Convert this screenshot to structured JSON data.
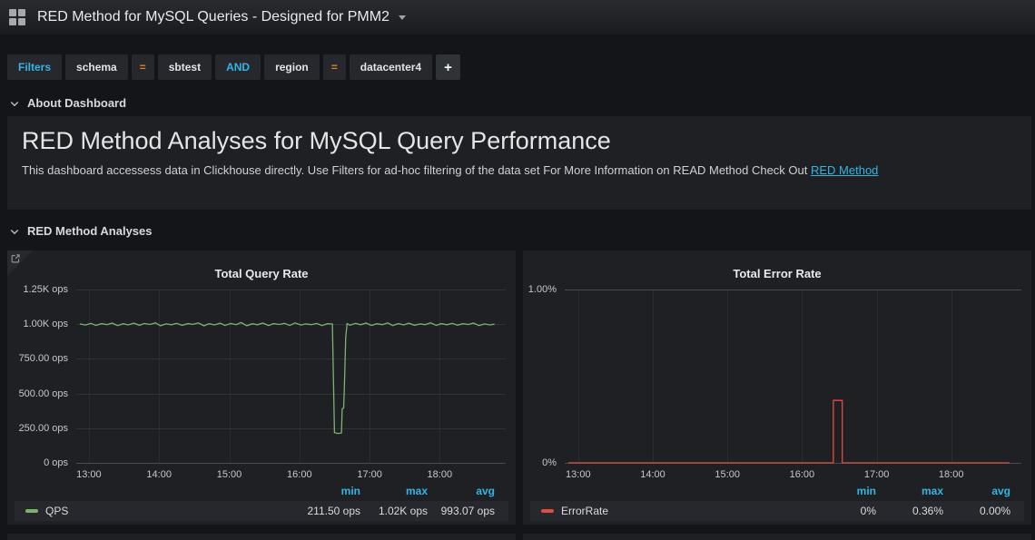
{
  "header": {
    "title": "RED Method for MySQL Queries - Designed for PMM2"
  },
  "filters": {
    "label": "Filters",
    "segments": [
      {
        "text": "schema"
      },
      {
        "text": "="
      },
      {
        "text": "sbtest"
      },
      {
        "text": "AND"
      },
      {
        "text": "region"
      },
      {
        "text": "="
      },
      {
        "text": "datacenter4"
      }
    ],
    "add_label": "+"
  },
  "about": {
    "header": "About Dashboard",
    "title": "RED Method Analyses for MySQL Query Performance",
    "body_prefix": "This dashboard accessess data in Clickhouse directly. Use Filters for ad-hoc filtering of the data set For More Information on READ Method Check Out ",
    "link_text": "RED Method"
  },
  "analyses_header": "RED Method Analyses",
  "colors": {
    "accent_blue": "#33b5e5",
    "operator_orange": "#d9822b",
    "qps_green": "#7eb26d",
    "error_red": "#e24d42",
    "panel_bg": "#1e2023",
    "page_bg": "#131518"
  },
  "chart_data": [
    {
      "type": "line",
      "title": "Total Query Rate",
      "xlabel": "time",
      "ylabel": "ops",
      "xlim": [
        12.82,
        18.94
      ],
      "ylim": [
        0,
        1250
      ],
      "grid": true,
      "legend_position": "bottom",
      "xticks": [
        {
          "v": 13,
          "label": "13:00"
        },
        {
          "v": 14,
          "label": "14:00"
        },
        {
          "v": 15,
          "label": "15:00"
        },
        {
          "v": 16,
          "label": "16:00"
        },
        {
          "v": 17,
          "label": "17:00"
        },
        {
          "v": 18,
          "label": "18:00"
        }
      ],
      "yticks": [
        {
          "v": 0,
          "label": "0 ops",
          "strong": true
        },
        {
          "v": 250,
          "label": "250.00 ops"
        },
        {
          "v": 500,
          "label": "500.00 ops"
        },
        {
          "v": 750,
          "label": "750.00 ops"
        },
        {
          "v": 1000,
          "label": "1.00K ops"
        },
        {
          "v": 1250,
          "label": "1.25K ops"
        }
      ],
      "series": [
        {
          "name": "QPS",
          "color": "#7eb26d",
          "points": [
            [
              12.87,
              1002
            ],
            [
              12.95,
              994
            ],
            [
              13.03,
              1006
            ],
            [
              13.1,
              991
            ],
            [
              13.18,
              1004
            ],
            [
              13.26,
              997
            ],
            [
              13.33,
              1008
            ],
            [
              13.41,
              990
            ],
            [
              13.49,
              1003
            ],
            [
              13.56,
              995
            ],
            [
              13.64,
              1007
            ],
            [
              13.72,
              992
            ],
            [
              13.79,
              1005
            ],
            [
              13.87,
              998
            ],
            [
              13.95,
              1010
            ],
            [
              14.02,
              989
            ],
            [
              14.1,
              1002
            ],
            [
              14.18,
              996
            ],
            [
              14.25,
              1006
            ],
            [
              14.33,
              992
            ],
            [
              14.41,
              1004
            ],
            [
              14.48,
              999
            ],
            [
              14.56,
              1009
            ],
            [
              14.64,
              988
            ],
            [
              14.71,
              1003
            ],
            [
              14.79,
              995
            ],
            [
              14.87,
              1007
            ],
            [
              14.94,
              991
            ],
            [
              15.02,
              1005
            ],
            [
              15.1,
              997
            ],
            [
              15.17,
              1012
            ],
            [
              15.25,
              989
            ],
            [
              15.33,
              1003
            ],
            [
              15.4,
              996
            ],
            [
              15.48,
              1008
            ],
            [
              15.56,
              990
            ],
            [
              15.63,
              1004
            ],
            [
              15.71,
              998
            ],
            [
              15.79,
              1006
            ],
            [
              15.86,
              991
            ],
            [
              15.94,
              1009
            ],
            [
              16.02,
              994
            ],
            [
              16.09,
              1002
            ],
            [
              16.17,
              997
            ],
            [
              16.25,
              1005
            ],
            [
              16.32,
              990
            ],
            [
              16.4,
              1003
            ],
            [
              16.47,
              1001
            ],
            [
              16.5,
              218
            ],
            [
              16.55,
              212
            ],
            [
              16.6,
              215
            ],
            [
              16.61,
              390
            ],
            [
              16.63,
              395
            ],
            [
              16.64,
              520
            ],
            [
              16.66,
              905
            ],
            [
              16.68,
              1004
            ],
            [
              16.72,
              993
            ],
            [
              16.8,
              1006
            ],
            [
              16.87,
              996
            ],
            [
              16.95,
              1008
            ],
            [
              17.03,
              991
            ],
            [
              17.1,
              1003
            ],
            [
              17.18,
              997
            ],
            [
              17.26,
              1009
            ],
            [
              17.33,
              990
            ],
            [
              17.41,
              1004
            ],
            [
              17.49,
              995
            ],
            [
              17.56,
              1007
            ],
            [
              17.64,
              992
            ],
            [
              17.72,
              1002
            ],
            [
              17.79,
              997
            ],
            [
              17.87,
              1010
            ],
            [
              17.95,
              991
            ],
            [
              18.02,
              1004
            ],
            [
              18.1,
              996
            ],
            [
              18.18,
              1006
            ],
            [
              18.25,
              993
            ],
            [
              18.33,
              1003
            ],
            [
              18.41,
              998
            ],
            [
              18.48,
              1008
            ],
            [
              18.56,
              990
            ],
            [
              18.64,
              1002
            ],
            [
              18.71,
              995
            ],
            [
              18.78,
              1000
            ]
          ]
        }
      ],
      "legend": {
        "headers": [
          "min",
          "max",
          "avg"
        ],
        "rows": [
          {
            "name": "QPS",
            "color": "#7eb26d",
            "values": [
              "211.50 ops",
              "1.02K ops",
              "993.07 ops"
            ]
          }
        ]
      }
    },
    {
      "type": "line",
      "title": "Total Error Rate",
      "xlabel": "time",
      "ylabel": "percent",
      "xlim": [
        12.82,
        18.94
      ],
      "ylim": [
        0,
        1
      ],
      "grid": true,
      "legend_position": "bottom",
      "xticks": [
        {
          "v": 13,
          "label": "13:00"
        },
        {
          "v": 14,
          "label": "14:00"
        },
        {
          "v": 15,
          "label": "15:00"
        },
        {
          "v": 16,
          "label": "16:00"
        },
        {
          "v": 17,
          "label": "17:00"
        },
        {
          "v": 18,
          "label": "18:00"
        }
      ],
      "yticks": [
        {
          "v": 0,
          "label": "0%",
          "strong": true
        },
        {
          "v": 1,
          "label": "1.00%",
          "strong": true
        }
      ],
      "series": [
        {
          "name": "ErrorRate",
          "color": "#e24d42",
          "points": [
            [
              12.87,
              0
            ],
            [
              16.42,
              0
            ],
            [
              16.42,
              0.36
            ],
            [
              16.54,
              0.36
            ],
            [
              16.54,
              0
            ],
            [
              18.78,
              0
            ]
          ]
        }
      ],
      "legend": {
        "headers": [
          "min",
          "max",
          "avg"
        ],
        "rows": [
          {
            "name": "ErrorRate",
            "color": "#e24d42",
            "values": [
              "0%",
              "0.36%",
              "0.00%"
            ]
          }
        ]
      }
    }
  ]
}
